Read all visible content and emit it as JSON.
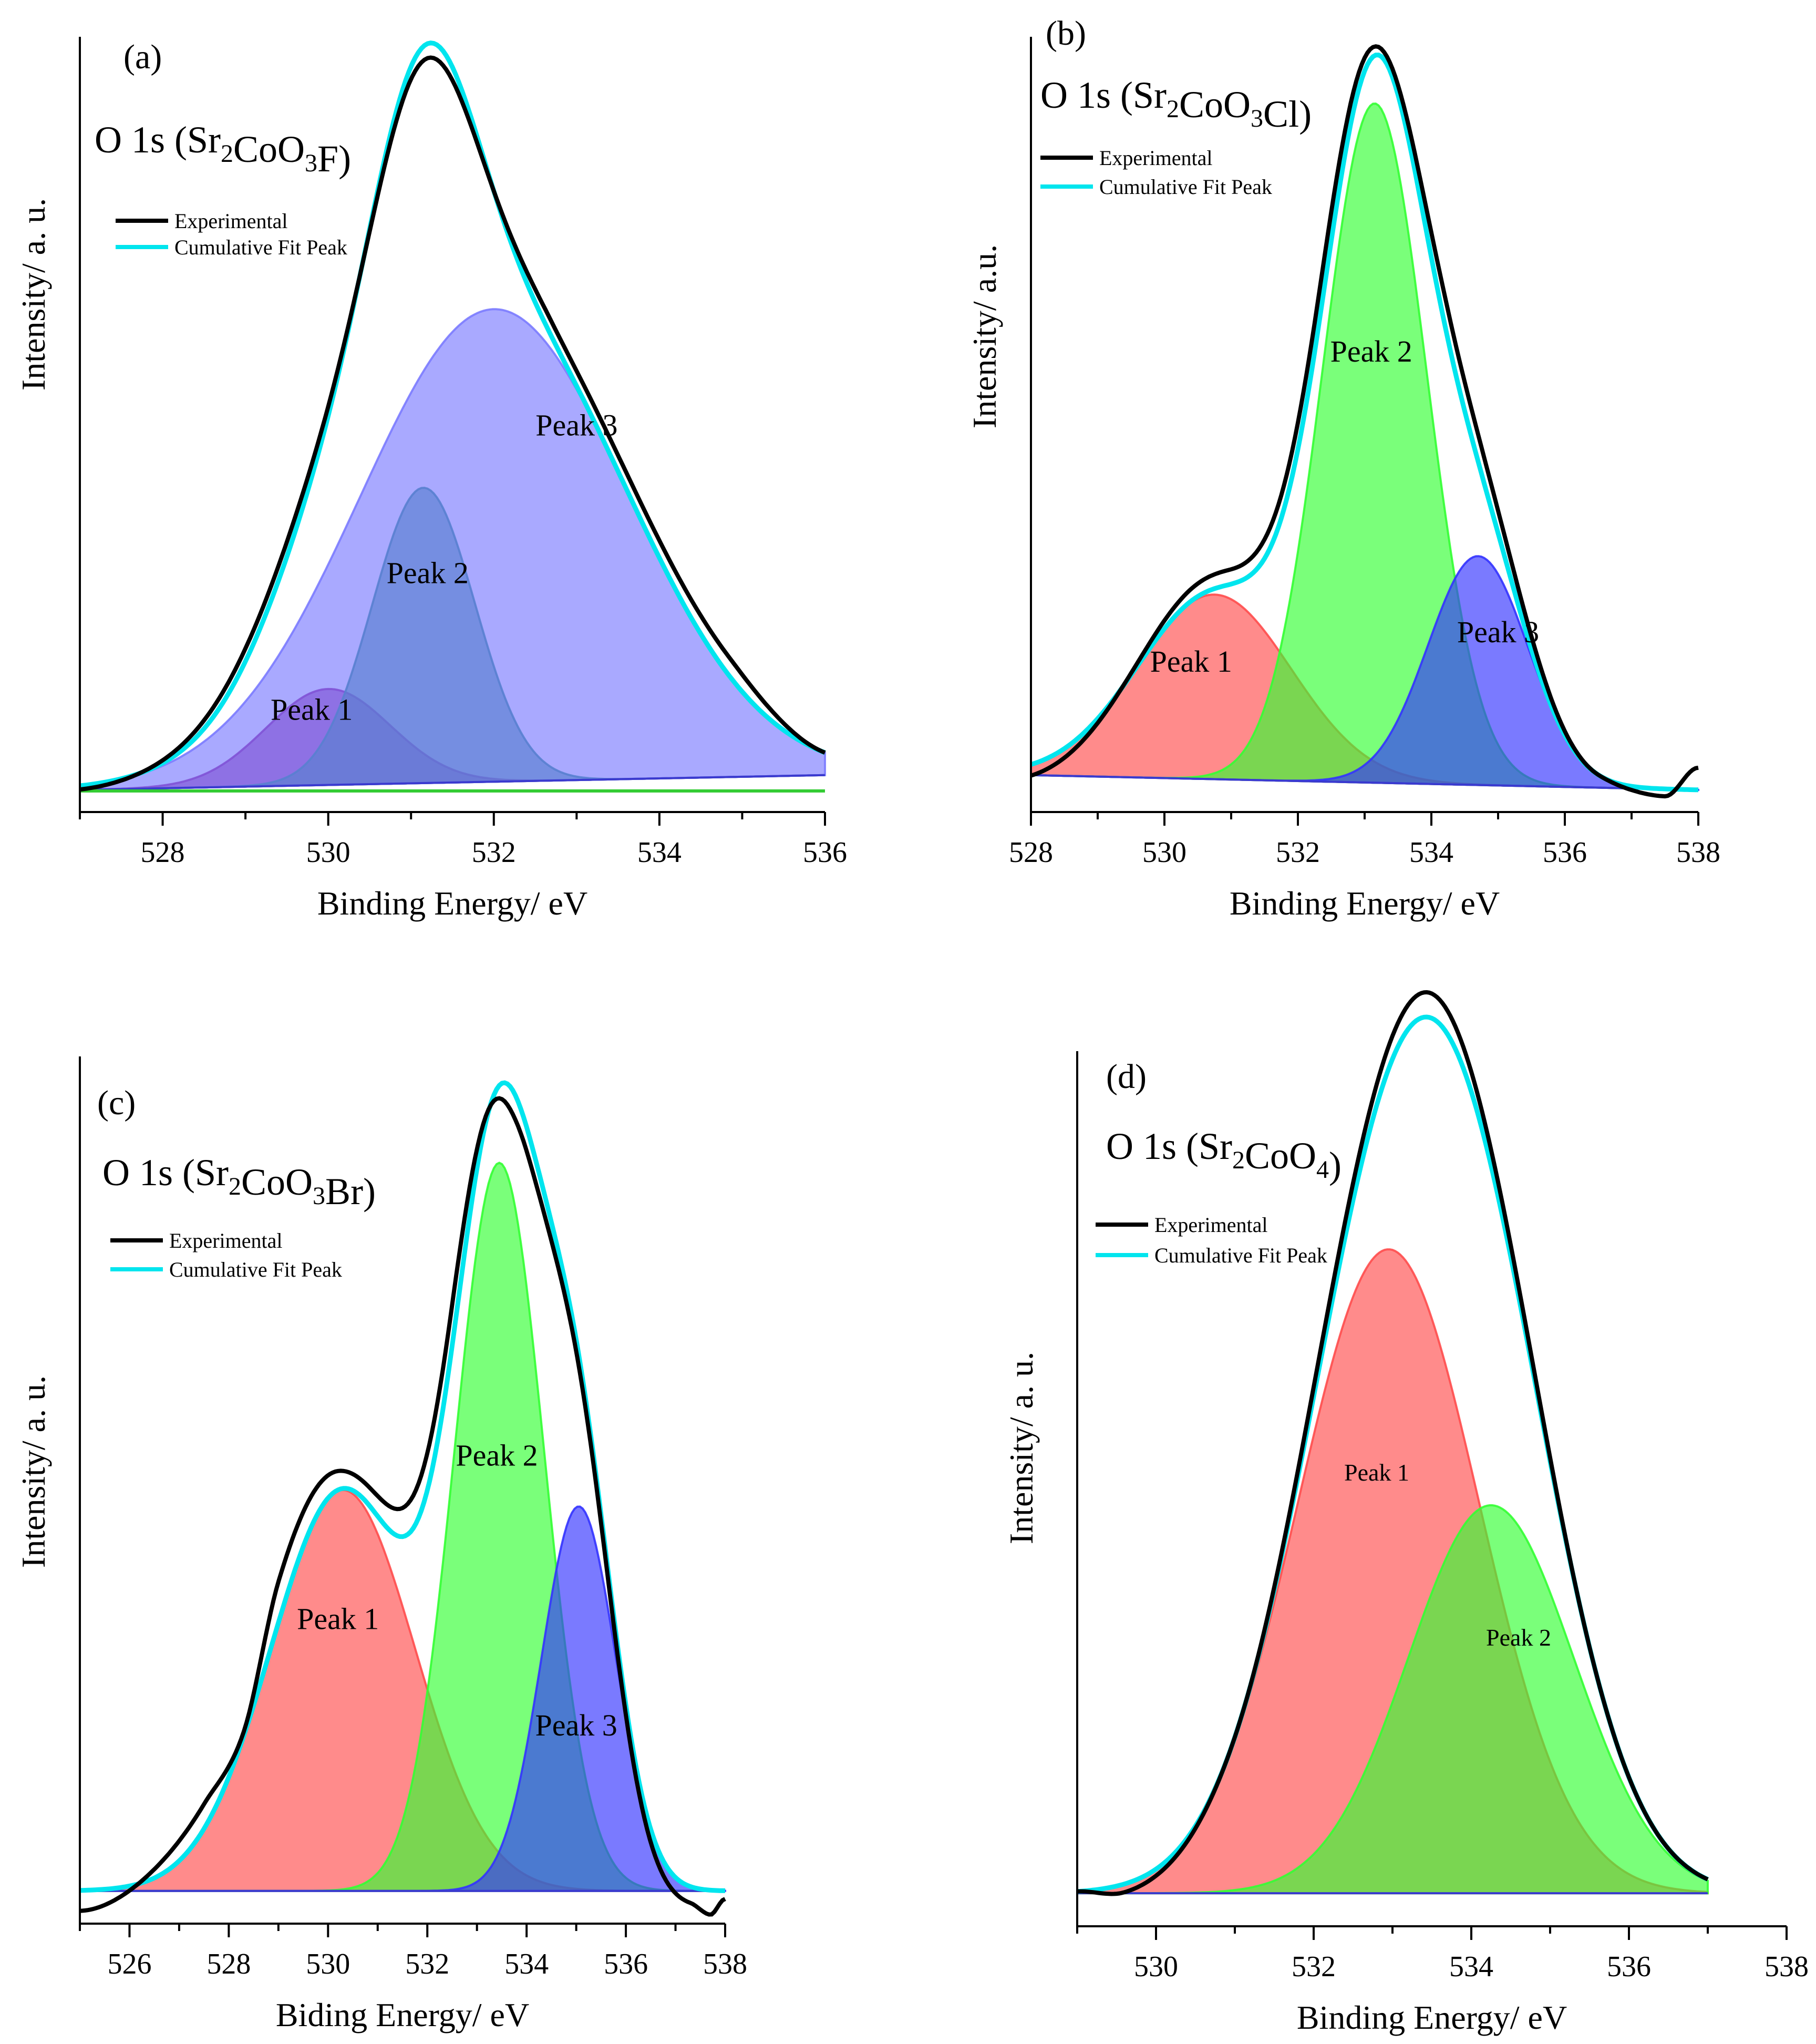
{
  "colors": {
    "experimental": "#000000",
    "fit": "#00E5EE",
    "red": "#FF4D4D",
    "green": "#33FF33",
    "blue": "#3333FF",
    "purple": "#8B0A8B",
    "teal": "#1A8A7A",
    "lavender": "#7B7BFF"
  },
  "chart_data": [
    {
      "panel": "(a)",
      "type": "line",
      "title": "O 1s (Sr",
      "title_parts": [
        {
          "t": "O 1s (Sr",
          "sub": false
        },
        {
          "t": "2",
          "sub": true
        },
        {
          "t": "CoO",
          "sub": false
        },
        {
          "t": "3",
          "sub": true
        },
        {
          "t": "F)",
          "sub": false
        }
      ],
      "xlabel": "Binding Energy/ eV",
      "ylabel": "Intensity/ a. u.",
      "xlim": [
        527,
        536
      ],
      "ylim": [
        -0.03,
        1.02
      ],
      "xticks": [
        528,
        530,
        532,
        534,
        536
      ],
      "xticklabels": [
        "528",
        "530",
        "532",
        "534",
        "536"
      ],
      "legend": [
        "Experimental",
        "Cumulative Fit Peak"
      ],
      "legend_position": "top-left",
      "baseline": {
        "x0": 527,
        "y0": 0.0,
        "x1": 536,
        "y1": 0.02
      },
      "peaks": [
        {
          "name": "Peak 1",
          "center": 530.0,
          "height": 0.13,
          "sigma": 0.75,
          "color": "#8B0A8B",
          "label_x": 529.8,
          "label_y": 0.095
        },
        {
          "name": "Peak 2",
          "center": 531.15,
          "height": 0.4,
          "sigma": 0.62,
          "color": "#1A8A7A",
          "label_x": 531.2,
          "label_y": 0.28
        },
        {
          "name": "Peak 3",
          "center": 532.0,
          "height": 0.64,
          "sigma": 1.62,
          "color": "#7B7BFF",
          "label_x": 533.0,
          "label_y": 0.48
        }
      ],
      "experimental_offset": [
        {
          "x": 527.0,
          "dy": -0.005
        },
        {
          "x": 529.5,
          "dy": 0.02
        },
        {
          "x": 531.3,
          "dy": -0.02
        },
        {
          "x": 532.7,
          "dy": 0.02
        },
        {
          "x": 534.8,
          "dy": 0.025
        },
        {
          "x": 536.0,
          "dy": 0.0
        }
      ]
    },
    {
      "panel": "(b)",
      "type": "line",
      "title": "O 1s (Sr",
      "title_parts": [
        {
          "t": "O 1s (Sr",
          "sub": false
        },
        {
          "t": "2",
          "sub": true
        },
        {
          "t": "CoO",
          "sub": false
        },
        {
          "t": "3",
          "sub": true
        },
        {
          "t": "Cl)",
          "sub": false
        }
      ],
      "xlabel": "Binding Energy/ eV",
      "ylabel": "Intensity/ a.u.",
      "xlim": [
        528,
        538
      ],
      "ylim": [
        -0.03,
        1.02
      ],
      "xticks": [
        528,
        530,
        532,
        534,
        536,
        538
      ],
      "xticklabels": [
        "528",
        "530",
        "532",
        "534",
        "536",
        "538"
      ],
      "legend": [
        "Experimental",
        "Cumulative Fit Peak"
      ],
      "legend_position": "top-left",
      "baseline": {
        "x0": 528,
        "y0": 0.02,
        "x1": 538,
        "y1": 0.0
      },
      "peaks": [
        {
          "name": "Peak 1",
          "center": 530.75,
          "height": 0.25,
          "sigma": 1.15,
          "color": "#FF4D4D",
          "label_x": 530.4,
          "label_y": 0.16
        },
        {
          "name": "Peak 2",
          "center": 533.15,
          "height": 0.92,
          "sigma": 0.78,
          "color": "#33FF33",
          "label_x": 533.1,
          "label_y": 0.58
        },
        {
          "name": "Peak 3",
          "center": 534.7,
          "height": 0.31,
          "sigma": 0.75,
          "color": "#3333FF",
          "label_x": 535.0,
          "label_y": 0.2
        }
      ],
      "experimental_offset": [
        {
          "x": 528.0,
          "dy": -0.015
        },
        {
          "x": 531.0,
          "dy": 0.02
        },
        {
          "x": 532.4,
          "dy": 0.04
        },
        {
          "x": 533.3,
          "dy": 0.01
        },
        {
          "x": 534.3,
          "dy": 0.04
        },
        {
          "x": 536.5,
          "dy": 0.0
        },
        {
          "x": 537.5,
          "dy": -0.01
        },
        {
          "x": 538.0,
          "dy": 0.03
        }
      ]
    },
    {
      "panel": "(c)",
      "type": "line",
      "title": "O 1s (Sr",
      "title_parts": [
        {
          "t": "O 1s (Sr",
          "sub": false
        },
        {
          "t": "2",
          "sub": true
        },
        {
          "t": "CoO",
          "sub": false
        },
        {
          "t": "3",
          "sub": true
        },
        {
          "t": "Br)",
          "sub": false
        }
      ],
      "xlabel": "Biding Energy/ eV",
      "ylabel": "Intensity/ a. u.",
      "xlim": [
        525,
        538
      ],
      "ylim": [
        -0.04,
        1.02
      ],
      "xticks": [
        526,
        528,
        530,
        532,
        534,
        536,
        538
      ],
      "xticklabels": [
        "526",
        "528",
        "530",
        "532",
        "534",
        "536",
        "538"
      ],
      "legend": [
        "Experimental",
        "Cumulative Fit Peak"
      ],
      "legend_position": "top-left",
      "baseline": {
        "x0": 525,
        "y0": 0.0,
        "x1": 538,
        "y1": 0.0
      },
      "peaks": [
        {
          "name": "Peak 1",
          "center": 530.3,
          "height": 0.49,
          "sigma": 1.45,
          "color": "#FF4D4D",
          "label_x": 530.2,
          "label_y": 0.32
        },
        {
          "name": "Peak 2",
          "center": 533.45,
          "height": 0.89,
          "sigma": 0.9,
          "color": "#33FF33",
          "label_x": 533.4,
          "label_y": 0.52
        },
        {
          "name": "Peak 3",
          "center": 535.05,
          "height": 0.47,
          "sigma": 0.75,
          "color": "#3333FF",
          "label_x": 535.0,
          "label_y": 0.19
        }
      ],
      "experimental_offset": [
        {
          "x": 525.0,
          "dy": -0.025
        },
        {
          "x": 527.5,
          "dy": 0.03
        },
        {
          "x": 528.3,
          "dy": 0.005
        },
        {
          "x": 529.0,
          "dy": 0.05
        },
        {
          "x": 530.5,
          "dy": 0.02
        },
        {
          "x": 532.5,
          "dy": 0.05
        },
        {
          "x": 533.8,
          "dy": -0.03
        },
        {
          "x": 535.5,
          "dy": -0.01
        },
        {
          "x": 537.3,
          "dy": -0.02
        },
        {
          "x": 537.7,
          "dy": -0.03
        },
        {
          "x": 538.0,
          "dy": -0.01
        }
      ]
    },
    {
      "panel": "(d)",
      "type": "line",
      "title": "O 1s (Sr",
      "title_parts": [
        {
          "t": "O 1s (Sr",
          "sub": false
        },
        {
          "t": "2",
          "sub": true
        },
        {
          "t": "CoO",
          "sub": false
        },
        {
          "t": "4",
          "sub": true
        },
        {
          "t": ")",
          "sub": false
        }
      ],
      "xlabel": "Binding Energy/ eV",
      "ylabel": "Intensity/ a. u.",
      "xlim": [
        529,
        538
      ],
      "ylim": [
        -0.04,
        1.02
      ],
      "xticks": [
        530,
        532,
        534,
        536,
        538
      ],
      "xticklabels": [
        "530",
        "532",
        "534",
        "536",
        "538"
      ],
      "legend": [
        "Experimental",
        "Cumulative Fit Peak"
      ],
      "legend_position": "top-left",
      "baseline": {
        "x0": 529,
        "y0": 0.0,
        "x1": 537,
        "y1": 0.0
      },
      "fit_range": [
        529,
        537
      ],
      "peaks": [
        {
          "name": "Peak 1",
          "center": 532.95,
          "height": 0.78,
          "sigma": 1.15,
          "color": "#FF4D4D",
          "label_x": 532.8,
          "label_y": 0.5
        },
        {
          "name": "Peak 2",
          "center": 534.25,
          "height": 0.47,
          "sigma": 1.05,
          "color": "#33FF33",
          "label_x": 534.6,
          "label_y": 0.3
        }
      ],
      "experimental_offset": [
        {
          "x": 529.0,
          "dy": 0.0
        },
        {
          "x": 529.6,
          "dy": -0.01
        },
        {
          "x": 531.0,
          "dy": 0.0
        },
        {
          "x": 533.4,
          "dy": 0.03
        },
        {
          "x": 535.5,
          "dy": 0.0
        },
        {
          "x": 537.0,
          "dy": 0.0
        }
      ]
    }
  ]
}
